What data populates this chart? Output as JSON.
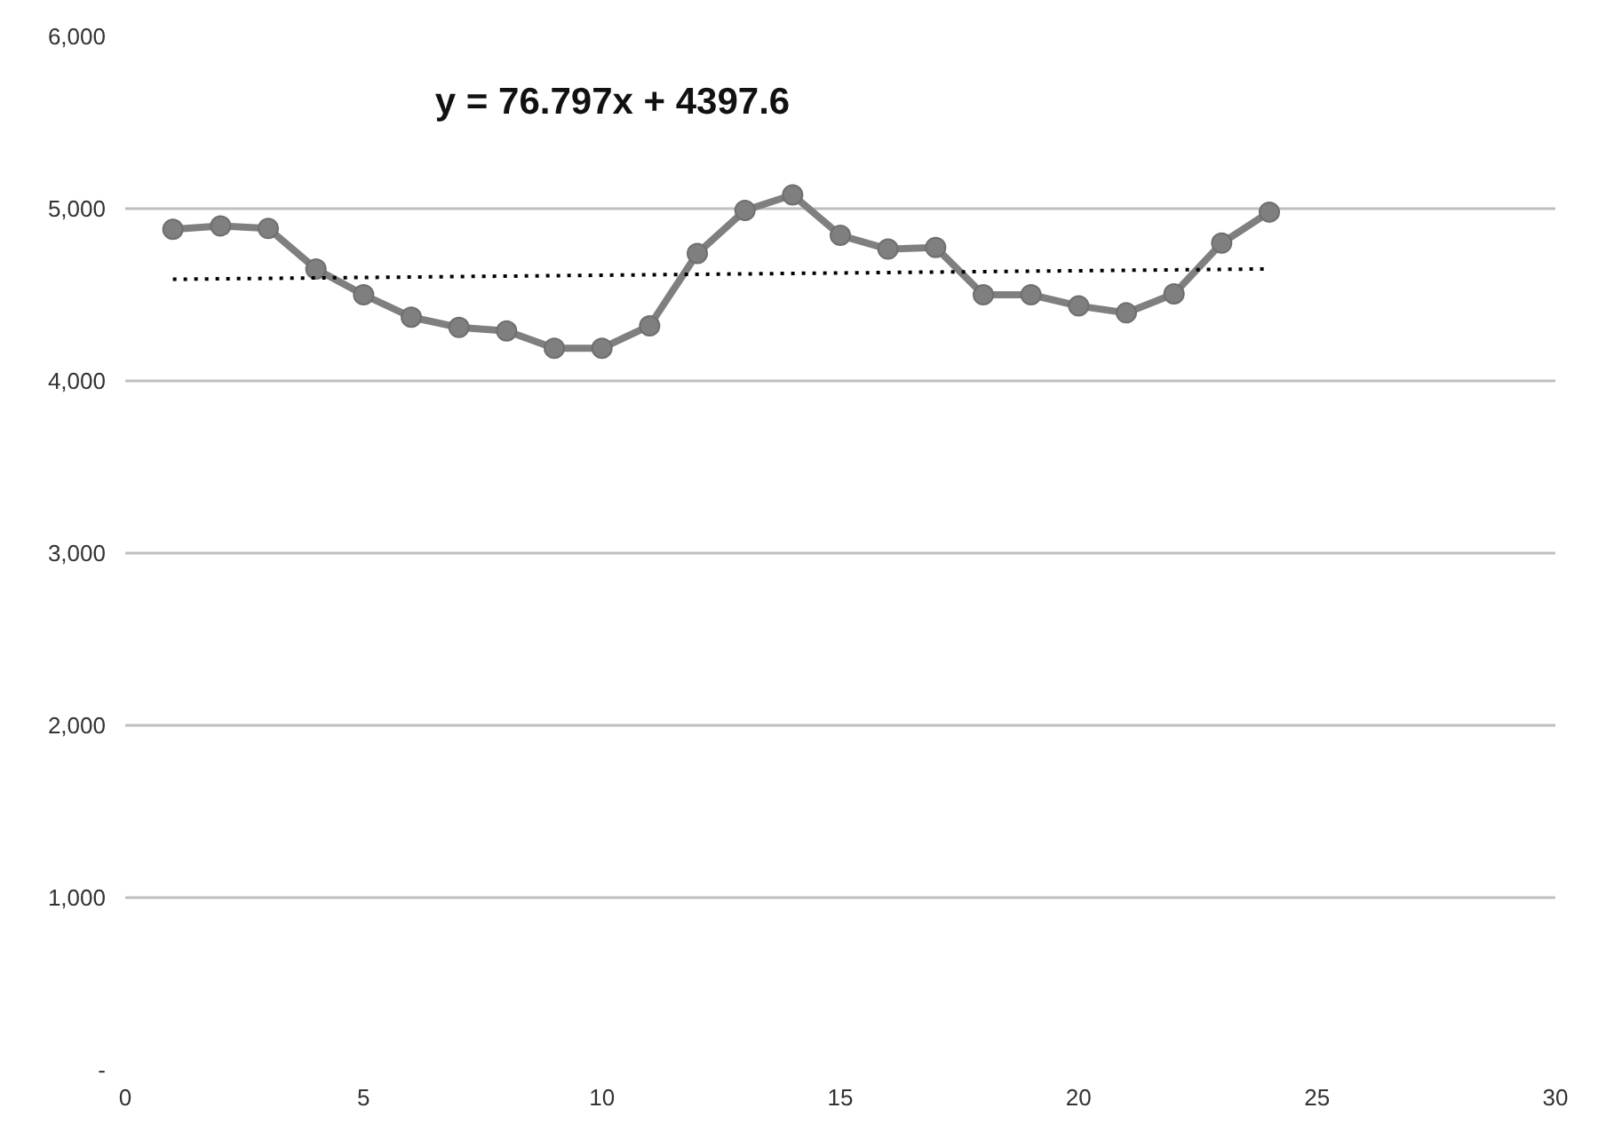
{
  "chart_data": {
    "type": "line",
    "annotations": [
      "y = 76.797x + 4397.6"
    ],
    "x": [
      1,
      2,
      3,
      4,
      5,
      6,
      7,
      8,
      9,
      10,
      11,
      12,
      13,
      14,
      15,
      16,
      17,
      18,
      19,
      20,
      21,
      22,
      23,
      24
    ],
    "series": [
      {
        "color": "#7f7f7f",
        "marker": "circle",
        "values": [
          4880,
          4900,
          4885,
          4650,
          4500,
          4370,
          4310,
          4290,
          4190,
          4190,
          4320,
          4740,
          4990,
          5080,
          4845,
          4765,
          4775,
          4500,
          4500,
          4435,
          4395,
          4505,
          4800,
          4980
        ]
      },
      {
        "type": "line",
        "color": "#000000",
        "line_style": "dotted",
        "marker": "none",
        "x": [
          1,
          24
        ],
        "values": [
          4590,
          4650
        ]
      }
    ],
    "xlim": [
      0,
      30
    ],
    "xticks": [
      0,
      5,
      10,
      15,
      20,
      25,
      30
    ],
    "ylim": [
      0,
      6000
    ],
    "yticks": [
      {
        "value": 0,
        "label": "-"
      },
      {
        "value": 1000,
        "label": "1,000"
      },
      {
        "value": 2000,
        "label": "2,000"
      },
      {
        "value": 3000,
        "label": "3,000"
      },
      {
        "value": 4000,
        "label": "4,000"
      },
      {
        "value": 5000,
        "label": "5,000"
      },
      {
        "value": 6000,
        "label": "6,000"
      }
    ],
    "grid": "y"
  }
}
